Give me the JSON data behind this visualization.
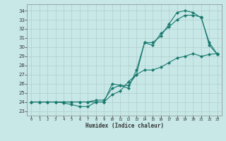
{
  "xlabel": "Humidex (Indice chaleur)",
  "bg_color": "#c8e8e8",
  "line_color": "#1a7a6e",
  "grid_color": "#b0cccc",
  "xlim": [
    -0.5,
    23.5
  ],
  "ylim": [
    22.5,
    34.7
  ],
  "xticks": [
    0,
    1,
    2,
    3,
    4,
    5,
    6,
    7,
    8,
    9,
    10,
    11,
    12,
    13,
    14,
    15,
    16,
    17,
    18,
    19,
    20,
    21,
    22,
    23
  ],
  "yticks": [
    23,
    24,
    25,
    26,
    27,
    28,
    29,
    30,
    31,
    32,
    33,
    34
  ],
  "line1_x": [
    0,
    1,
    2,
    3,
    4,
    5,
    6,
    7,
    8,
    9,
    10,
    11,
    12,
    13,
    14,
    15,
    16,
    17,
    18,
    19,
    20,
    21,
    22,
    23
  ],
  "line1_y": [
    24.0,
    24.0,
    24.0,
    24.0,
    23.9,
    23.7,
    23.5,
    23.5,
    24.0,
    24.0,
    24.8,
    25.2,
    26.2,
    27.0,
    27.5,
    27.5,
    27.8,
    28.3,
    28.8,
    29.0,
    29.3,
    29.0,
    29.2,
    29.3
  ],
  "line2_x": [
    0,
    1,
    2,
    3,
    4,
    5,
    6,
    7,
    8,
    9,
    10,
    11,
    12,
    13,
    14,
    15,
    16,
    17,
    18,
    19,
    20,
    21,
    22,
    23
  ],
  "line2_y": [
    24.0,
    24.0,
    24.0,
    24.0,
    24.0,
    24.0,
    24.0,
    24.0,
    24.2,
    24.2,
    25.5,
    25.8,
    25.5,
    27.5,
    30.5,
    30.2,
    31.5,
    32.2,
    33.0,
    33.5,
    33.5,
    33.3,
    30.2,
    29.2
  ],
  "line3_x": [
    0,
    1,
    2,
    3,
    4,
    5,
    6,
    7,
    8,
    9,
    10,
    11,
    12,
    13,
    14,
    15,
    16,
    17,
    18,
    19,
    20,
    21,
    22,
    23
  ],
  "line3_y": [
    24.0,
    24.0,
    24.0,
    24.0,
    24.0,
    24.0,
    24.0,
    24.0,
    24.0,
    24.0,
    26.0,
    25.8,
    25.8,
    27.0,
    30.5,
    30.5,
    31.2,
    32.5,
    33.8,
    34.0,
    33.8,
    33.2,
    30.5,
    29.2
  ]
}
